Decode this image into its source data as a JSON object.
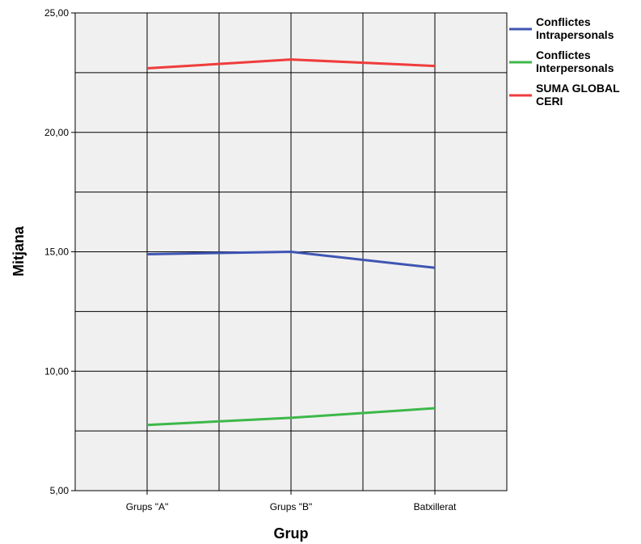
{
  "chart_data": {
    "type": "line",
    "categories": [
      "Grups \"A\"",
      "Grups \"B\"",
      "Batxillerat"
    ],
    "series": [
      {
        "name": "Conflictes Intrapersonals",
        "name_lines": [
          "Conflictes",
          "Intrapersonals"
        ],
        "color": "#3f55b3",
        "values": [
          14.9,
          15.0,
          14.33
        ]
      },
      {
        "name": "Conflictes Interpersonals",
        "name_lines": [
          "Conflictes",
          "Interpersonals"
        ],
        "color": "#3db84a",
        "values": [
          7.75,
          8.05,
          8.45
        ]
      },
      {
        "name": "SUMA GLOBAL CERI",
        "name_lines": [
          "SUMA GLOBAL",
          "CERI"
        ],
        "color": "#f03c3c",
        "values": [
          22.68,
          23.05,
          22.78
        ]
      }
    ],
    "xlabel": "Grup",
    "ylabel": "Mitjana",
    "ylim": [
      5,
      25
    ],
    "yticks": [
      "5,00",
      "10,00",
      "15,00",
      "20,00",
      "25,00"
    ],
    "ytick_values": [
      5,
      10,
      15,
      20,
      25
    ],
    "grid": true,
    "legend_position": "right",
    "plot_background": "#f0f0f0"
  }
}
